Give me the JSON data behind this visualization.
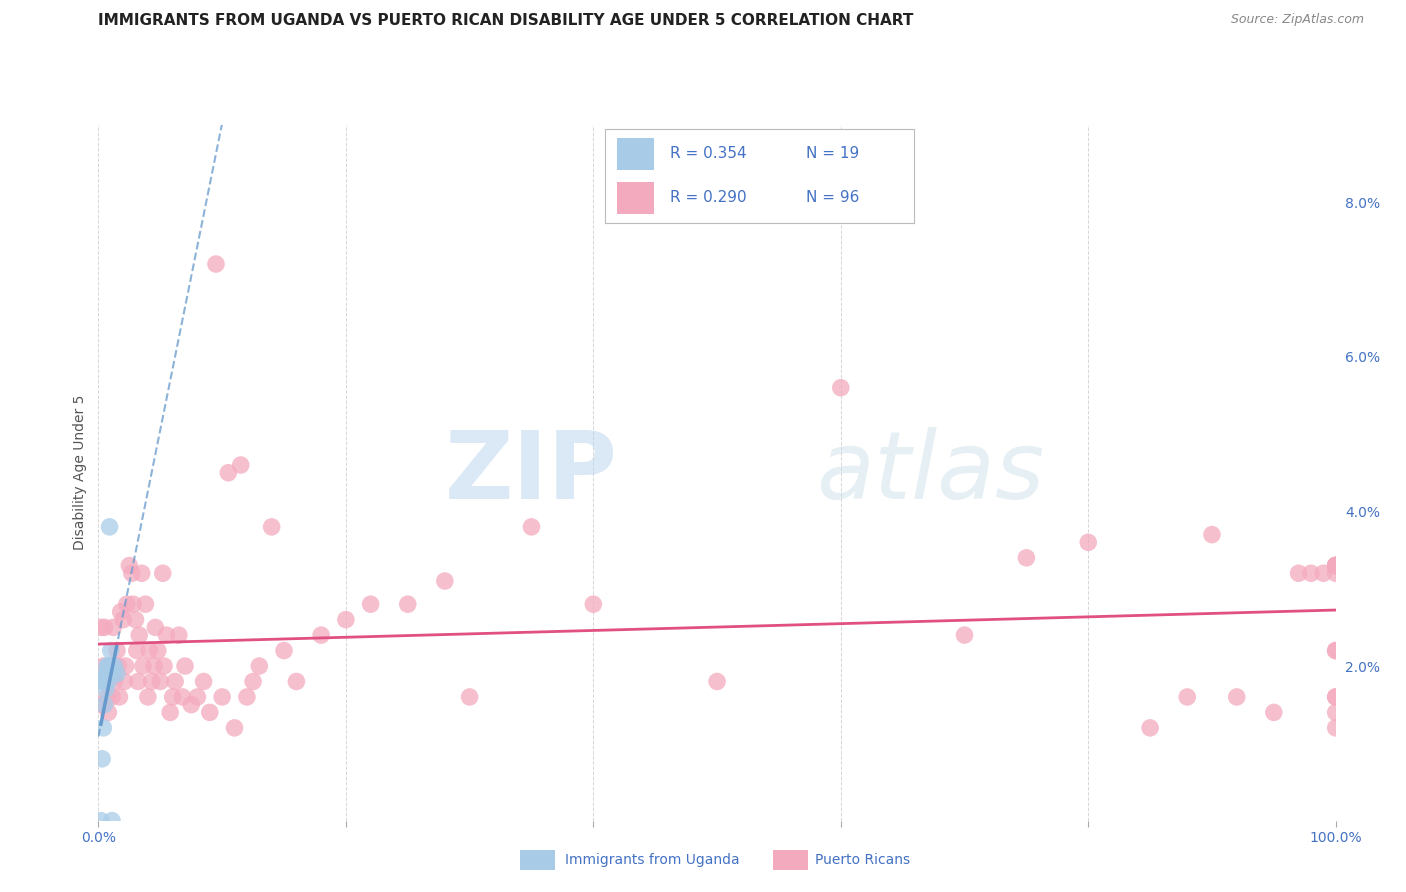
{
  "title": "IMMIGRANTS FROM UGANDA VS PUERTO RICAN DISABILITY AGE UNDER 5 CORRELATION CHART",
  "source": "Source: ZipAtlas.com",
  "ylabel": "Disability Age Under 5",
  "xlim": [
    0.0,
    1.0
  ],
  "ylim": [
    0.0,
    0.09
  ],
  "xticks": [
    0.0,
    0.2,
    0.4,
    0.6,
    0.8,
    1.0
  ],
  "xtick_labels": [
    "0.0%",
    "",
    "",
    "",
    "",
    "100.0%"
  ],
  "yticks_right": [
    0.0,
    0.02,
    0.04,
    0.06,
    0.08
  ],
  "ytick_labels_right": [
    "",
    "2.0%",
    "4.0%",
    "6.0%",
    "8.0%"
  ],
  "legend_r1": "R = 0.354",
  "legend_n1": "N = 19",
  "legend_r2": "R = 0.290",
  "legend_n2": "N = 96",
  "legend_label1": "Immigrants from Uganda",
  "legend_label2": "Puerto Ricans",
  "color_uganda": "#a8cce8",
  "color_uganda_line": "#6699cc",
  "color_pr": "#f4aabe",
  "color_pr_line": "#e05080",
  "color_text_blue": "#4472c4",
  "background_color": "#ffffff",
  "uganda_x": [
    0.002,
    0.003,
    0.004,
    0.004,
    0.005,
    0.005,
    0.006,
    0.006,
    0.007,
    0.007,
    0.008,
    0.008,
    0.009,
    0.01,
    0.01,
    0.011,
    0.012,
    0.013,
    0.015
  ],
  "uganda_y": [
    0.0,
    0.008,
    0.012,
    0.018,
    0.015,
    0.018,
    0.017,
    0.019,
    0.019,
    0.02,
    0.018,
    0.02,
    0.038,
    0.02,
    0.022,
    0.0,
    0.019,
    0.02,
    0.019
  ],
  "pr_x": [
    0.002,
    0.003,
    0.004,
    0.005,
    0.006,
    0.007,
    0.008,
    0.009,
    0.01,
    0.011,
    0.012,
    0.013,
    0.015,
    0.016,
    0.017,
    0.018,
    0.02,
    0.021,
    0.022,
    0.023,
    0.025,
    0.027,
    0.028,
    0.03,
    0.031,
    0.032,
    0.033,
    0.035,
    0.036,
    0.038,
    0.04,
    0.041,
    0.043,
    0.045,
    0.046,
    0.048,
    0.05,
    0.052,
    0.053,
    0.055,
    0.058,
    0.06,
    0.062,
    0.065,
    0.068,
    0.07,
    0.075,
    0.08,
    0.085,
    0.09,
    0.095,
    0.1,
    0.105,
    0.11,
    0.115,
    0.12,
    0.125,
    0.13,
    0.14,
    0.15,
    0.16,
    0.18,
    0.2,
    0.22,
    0.25,
    0.28,
    0.3,
    0.35,
    0.4,
    0.5,
    0.6,
    0.7,
    0.75,
    0.8,
    0.85,
    0.88,
    0.9,
    0.92,
    0.95,
    0.97,
    0.98,
    0.99,
    1.0,
    1.0,
    1.0,
    1.0,
    1.0,
    1.0,
    1.0,
    1.0,
    1.0,
    1.0,
    1.0,
    1.0,
    1.0,
    1.0
  ],
  "pr_y": [
    0.025,
    0.015,
    0.02,
    0.025,
    0.018,
    0.016,
    0.014,
    0.02,
    0.019,
    0.016,
    0.025,
    0.018,
    0.022,
    0.02,
    0.016,
    0.027,
    0.026,
    0.018,
    0.02,
    0.028,
    0.033,
    0.032,
    0.028,
    0.026,
    0.022,
    0.018,
    0.024,
    0.032,
    0.02,
    0.028,
    0.016,
    0.022,
    0.018,
    0.02,
    0.025,
    0.022,
    0.018,
    0.032,
    0.02,
    0.024,
    0.014,
    0.016,
    0.018,
    0.024,
    0.016,
    0.02,
    0.015,
    0.016,
    0.018,
    0.014,
    0.072,
    0.016,
    0.045,
    0.012,
    0.046,
    0.016,
    0.018,
    0.02,
    0.038,
    0.022,
    0.018,
    0.024,
    0.026,
    0.028,
    0.028,
    0.031,
    0.016,
    0.038,
    0.028,
    0.018,
    0.056,
    0.024,
    0.034,
    0.036,
    0.012,
    0.016,
    0.037,
    0.016,
    0.014,
    0.032,
    0.032,
    0.032,
    0.033,
    0.032,
    0.022,
    0.016,
    0.033,
    0.033,
    0.033,
    0.033,
    0.033,
    0.022,
    0.016,
    0.014,
    0.012,
    0.033
  ],
  "watermark_zip": "ZIP",
  "watermark_atlas": "atlas",
  "title_fontsize": 11,
  "axis_label_fontsize": 10,
  "tick_fontsize": 10
}
